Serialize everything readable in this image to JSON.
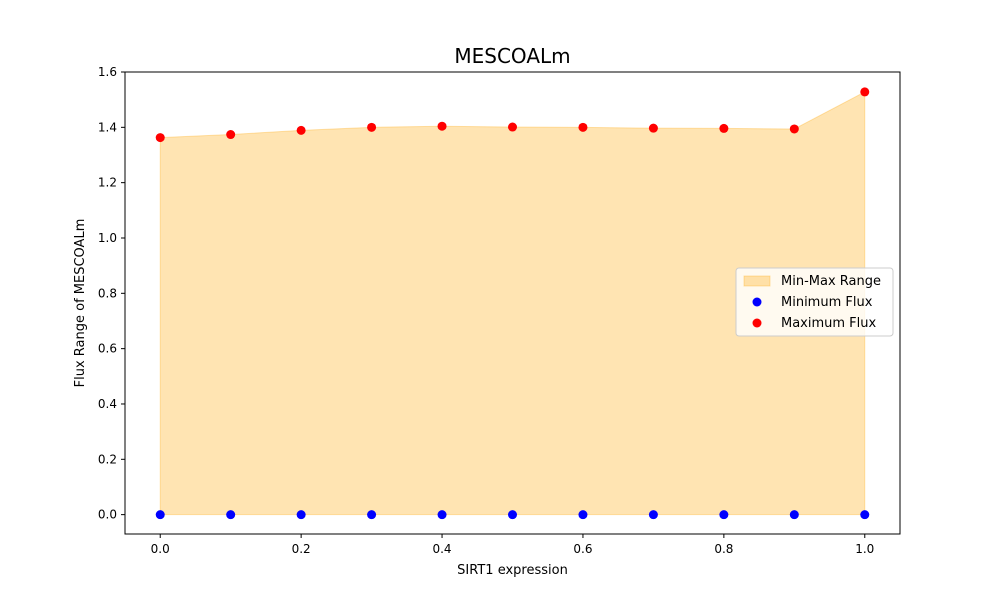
{
  "chart_data": {
    "type": "scatter",
    "title": "MESCOALm",
    "xlabel": "SIRT1 expression",
    "ylabel": "Flux Range of MESCOALm",
    "x": [
      0.0,
      0.1,
      0.2,
      0.3,
      0.4,
      0.5,
      0.6,
      0.7,
      0.8,
      0.9,
      1.0
    ],
    "series": [
      {
        "name": "Minimum Flux",
        "color": "#0000ff",
        "values": [
          0,
          0,
          0,
          0,
          0,
          0,
          0,
          0,
          0,
          0,
          0
        ]
      },
      {
        "name": "Maximum Flux",
        "color": "#ff0000",
        "values": [
          1.363,
          1.374,
          1.389,
          1.4,
          1.404,
          1.401,
          1.4,
          1.397,
          1.396,
          1.394,
          1.528
        ]
      }
    ],
    "fill": {
      "name": "Min-Max Range",
      "color": "#ffa500"
    },
    "xlim": [
      -0.05,
      1.05
    ],
    "ylim": [
      -0.07,
      1.6
    ],
    "xticks": [
      "0.0",
      "0.2",
      "0.4",
      "0.6",
      "0.8",
      "1.0"
    ],
    "yticks": [
      "0.0",
      "0.2",
      "0.4",
      "0.6",
      "0.8",
      "1.0",
      "1.2",
      "1.4",
      "1.6"
    ],
    "grid": false,
    "legend_position": "center-right"
  }
}
